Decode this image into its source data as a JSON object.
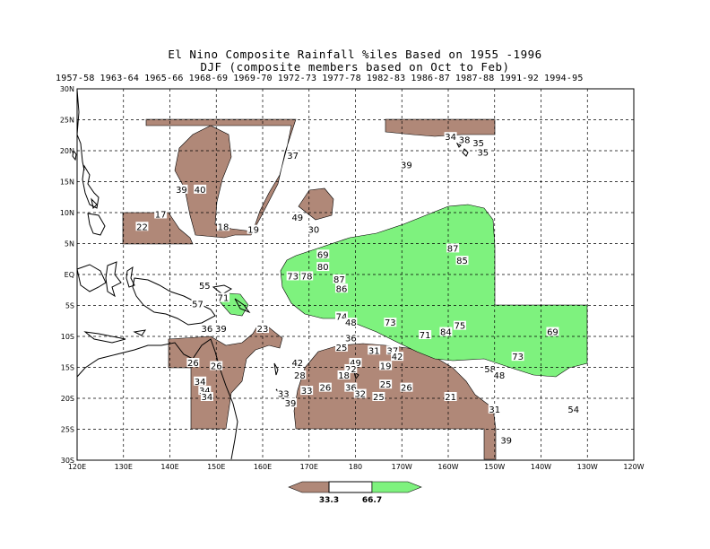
{
  "title": {
    "line1": "El Nino Composite Rainfall %iles Based on 1955 -1996",
    "line2": "DJF (composite members based on Oct to Feb)"
  },
  "years": [
    "1957-58",
    "1963-64",
    "1965-66",
    "1968-69",
    "1969-70",
    "1972-73",
    "1977-78",
    "1982-83",
    "1986-87",
    "1987-88",
    "1991-92",
    "1994-95"
  ],
  "lon_labels": [
    "120E",
    "130E",
    "140E",
    "150E",
    "160E",
    "170E",
    "180",
    "170W",
    "160W",
    "150W",
    "140W",
    "130W",
    "120W"
  ],
  "lat_labels": [
    "30N",
    "25N",
    "20N",
    "15N",
    "10N",
    "5N",
    "EQ",
    "5S",
    "10S",
    "15S",
    "20S",
    "25S",
    "30S"
  ],
  "colors": {
    "dry": "#b08878",
    "wet": "#7ef27e",
    "grid": "#000000"
  },
  "colorbar": {
    "low": "33.3",
    "high": "66.7"
  },
  "station_values": [
    {
      "v": "34",
      "lon": 200.5,
      "lat": 22.0
    },
    {
      "v": "38",
      "lon": 203.5,
      "lat": 21.5
    },
    {
      "v": "35",
      "lon": 206.5,
      "lat": 21.0
    },
    {
      "v": "35",
      "lon": 207.5,
      "lat": 19.5
    },
    {
      "v": "37",
      "lon": 166.5,
      "lat": 19.0
    },
    {
      "v": "39",
      "lon": 191.0,
      "lat": 17.5
    },
    {
      "v": "39",
      "lon": 142.5,
      "lat": 13.5
    },
    {
      "v": "40",
      "lon": 146.5,
      "lat": 13.5
    },
    {
      "v": "17",
      "lon": 138.0,
      "lat": 9.5
    },
    {
      "v": "49",
      "lon": 167.5,
      "lat": 9.0
    },
    {
      "v": "22",
      "lon": 134.0,
      "lat": 7.5
    },
    {
      "v": "18",
      "lon": 151.5,
      "lat": 7.5
    },
    {
      "v": "19",
      "lon": 158.0,
      "lat": 7.0
    },
    {
      "v": "30",
      "lon": 171.0,
      "lat": 7.0
    },
    {
      "v": "87",
      "lon": 201.0,
      "lat": 4.0
    },
    {
      "v": "69",
      "lon": 173.0,
      "lat": 3.0
    },
    {
      "v": "85",
      "lon": 203.0,
      "lat": 2.0
    },
    {
      "v": "80",
      "lon": 173.0,
      "lat": 1.0
    },
    {
      "v": "73",
      "lon": 166.5,
      "lat": -0.5
    },
    {
      "v": "78",
      "lon": 169.5,
      "lat": -0.5
    },
    {
      "v": "87",
      "lon": 176.5,
      "lat": -1.0
    },
    {
      "v": "86",
      "lon": 177.0,
      "lat": -2.5
    },
    {
      "v": "55",
      "lon": 147.5,
      "lat": -2.0
    },
    {
      "v": "71",
      "lon": 151.5,
      "lat": -4.0
    },
    {
      "v": "57",
      "lon": 146.0,
      "lat": -5.0
    },
    {
      "v": "74",
      "lon": 177.0,
      "lat": -7.0
    },
    {
      "v": "48",
      "lon": 179.0,
      "lat": -8.0
    },
    {
      "v": "73",
      "lon": 187.5,
      "lat": -8.0
    },
    {
      "v": "75",
      "lon": 202.5,
      "lat": -8.5
    },
    {
      "v": "23",
      "lon": 160.0,
      "lat": -9.0
    },
    {
      "v": "36",
      "lon": 148.0,
      "lat": -9.0
    },
    {
      "v": "39",
      "lon": 151.0,
      "lat": -9.0
    },
    {
      "v": "84",
      "lon": 199.5,
      "lat": -9.5
    },
    {
      "v": "71",
      "lon": 195.0,
      "lat": -10.0
    },
    {
      "v": "69",
      "lon": 222.5,
      "lat": -9.5
    },
    {
      "v": "36",
      "lon": 179.0,
      "lat": -10.5
    },
    {
      "v": "25",
      "lon": 177.0,
      "lat": -12.0
    },
    {
      "v": "31",
      "lon": 184.0,
      "lat": -12.5
    },
    {
      "v": "37",
      "lon": 188.0,
      "lat": -12.5
    },
    {
      "v": "42",
      "lon": 189.0,
      "lat": -13.5
    },
    {
      "v": "73",
      "lon": 215.0,
      "lat": -13.5
    },
    {
      "v": "26",
      "lon": 145.0,
      "lat": -14.5
    },
    {
      "v": "26",
      "lon": 150.0,
      "lat": -15.0
    },
    {
      "v": "42",
      "lon": 167.5,
      "lat": -14.5
    },
    {
      "v": "49",
      "lon": 180.0,
      "lat": -14.5
    },
    {
      "v": "19",
      "lon": 186.5,
      "lat": -15.0
    },
    {
      "v": "58",
      "lon": 209.0,
      "lat": -15.5
    },
    {
      "v": "22",
      "lon": 179.0,
      "lat": -15.5
    },
    {
      "v": "28",
      "lon": 168.0,
      "lat": -16.5
    },
    {
      "v": "18",
      "lon": 177.5,
      "lat": -16.5
    },
    {
      "v": "48",
      "lon": 211.0,
      "lat": -16.5
    },
    {
      "v": "34",
      "lon": 146.5,
      "lat": -17.5
    },
    {
      "v": "25",
      "lon": 186.5,
      "lat": -18.0
    },
    {
      "v": "26",
      "lon": 173.5,
      "lat": -18.5
    },
    {
      "v": "36",
      "lon": 179.0,
      "lat": -18.5
    },
    {
      "v": "26",
      "lon": 191.0,
      "lat": -18.5
    },
    {
      "v": "34",
      "lon": 147.5,
      "lat": -19.0
    },
    {
      "v": "33",
      "lon": 164.5,
      "lat": -19.5
    },
    {
      "v": "33",
      "lon": 169.5,
      "lat": -19.0
    },
    {
      "v": "32",
      "lon": 181.0,
      "lat": -19.5
    },
    {
      "v": "25",
      "lon": 185.0,
      "lat": -20.0
    },
    {
      "v": "21",
      "lon": 200.5,
      "lat": -20.0
    },
    {
      "v": "34",
      "lon": 148.0,
      "lat": -20.0
    },
    {
      "v": "39",
      "lon": 166.0,
      "lat": -21.0
    },
    {
      "v": "31",
      "lon": 210.0,
      "lat": -22.0
    },
    {
      "v": "54",
      "lon": 227.0,
      "lat": -22.0
    },
    {
      "v": "39",
      "lon": 212.5,
      "lat": -27.0
    }
  ]
}
